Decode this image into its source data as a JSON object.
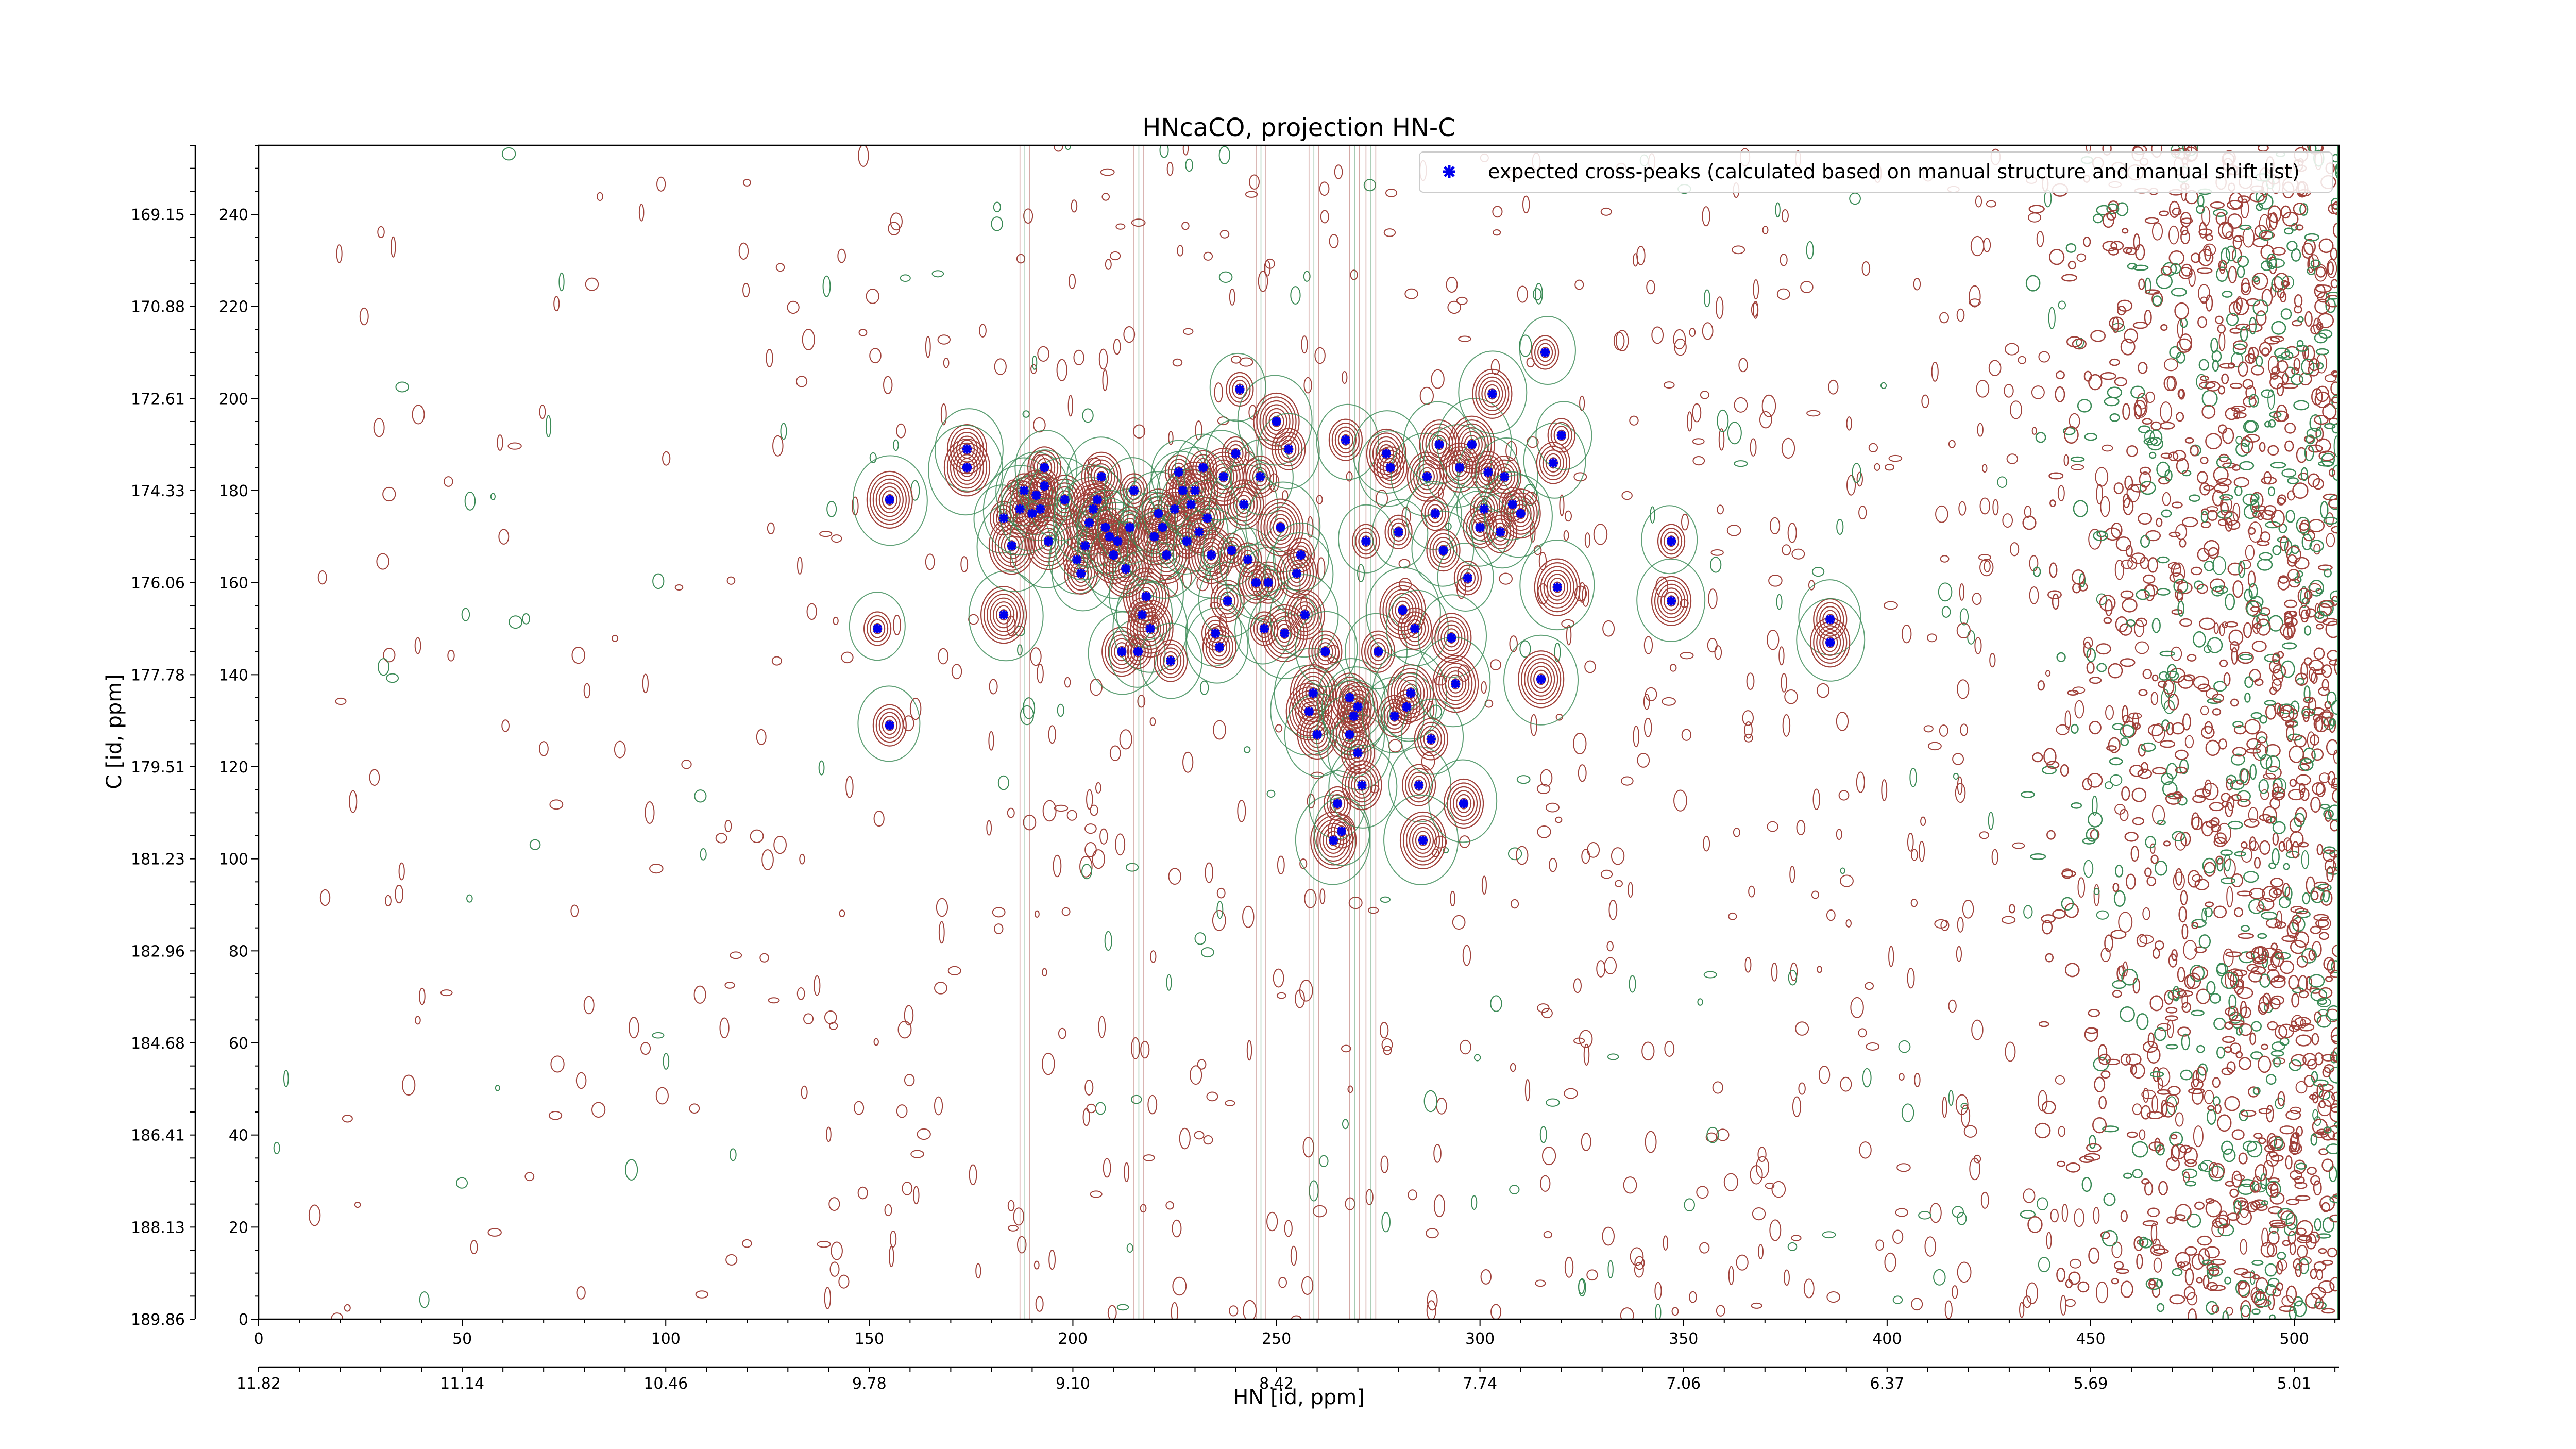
{
  "chart_data": {
    "type": "scatter",
    "title": "HNcaCO, projection HN-C",
    "xlabel": "HN [id, ppm]",
    "ylabel": "C [id, ppm]",
    "xlim": [
      0,
      511
    ],
    "ylim": [
      0,
      255
    ],
    "x_ticks": [
      0,
      50,
      100,
      150,
      200,
      250,
      300,
      350,
      400,
      450,
      500
    ],
    "y_ticks": [
      0,
      20,
      40,
      60,
      80,
      100,
      120,
      140,
      160,
      180,
      200,
      220,
      240
    ],
    "secondary_x_axis": {
      "label": "HN [id, ppm]",
      "position": "bottom",
      "ticks": [
        {
          "index": 0,
          "label": "11.82"
        },
        {
          "index": 50,
          "label": "11.14"
        },
        {
          "index": 100,
          "label": "10.46"
        },
        {
          "index": 150,
          "label": "9.78"
        },
        {
          "index": 200,
          "label": "9.10"
        },
        {
          "index": 250,
          "label": "8.42"
        },
        {
          "index": 300,
          "label": "7.74"
        },
        {
          "index": 350,
          "label": "7.06"
        },
        {
          "index": 400,
          "label": "6.37"
        },
        {
          "index": 450,
          "label": "5.69"
        },
        {
          "index": 500,
          "label": "5.01"
        }
      ]
    },
    "secondary_y_axis": {
      "position": "left",
      "ticks": [
        {
          "index": 0,
          "label": "189.86"
        },
        {
          "index": 20,
          "label": "188.13"
        },
        {
          "index": 40,
          "label": "186.41"
        },
        {
          "index": 60,
          "label": "184.68"
        },
        {
          "index": 80,
          "label": "182.96"
        },
        {
          "index": 100,
          "label": "181.23"
        },
        {
          "index": 120,
          "label": "179.51"
        },
        {
          "index": 140,
          "label": "177.78"
        },
        {
          "index": 160,
          "label": "176.06"
        },
        {
          "index": 180,
          "label": "174.33"
        },
        {
          "index": 200,
          "label": "172.61"
        },
        {
          "index": 220,
          "label": "170.88"
        },
        {
          "index": 240,
          "label": "169.15"
        }
      ]
    },
    "legend": {
      "position": "top-right",
      "entries": [
        "expected cross-peaks (calculated based on manual structure and manual shift list)"
      ]
    },
    "grid": false,
    "colors": {
      "positive_contour": "#a0413a",
      "negative_contour": "#3a8a55",
      "peak_marker": "#0000ee"
    },
    "series": [
      {
        "name": "expected cross-peaks (calculated based on manual structure and manual shift list)",
        "x": [
          155,
          174,
          174,
          183,
          183,
          185,
          187,
          188,
          190,
          191,
          192,
          193,
          193,
          194,
          198,
          201,
          202,
          203,
          204,
          205,
          206,
          207,
          208,
          209,
          210,
          211,
          212,
          213,
          214,
          215,
          216,
          217,
          218,
          219,
          220,
          221,
          222,
          223,
          224,
          225,
          226,
          227,
          228,
          229,
          230,
          231,
          232,
          233,
          234,
          235,
          236,
          237,
          238,
          239,
          240,
          241,
          242,
          243,
          245,
          246,
          247,
          248,
          250,
          251,
          252,
          253,
          255,
          256,
          257,
          258,
          259,
          260,
          262,
          264,
          265,
          266,
          267,
          268,
          268,
          269,
          270,
          270,
          271,
          272,
          275,
          277,
          278,
          279,
          280,
          281,
          282,
          283,
          284,
          285,
          286,
          287,
          288,
          289,
          290,
          291,
          293,
          294,
          295,
          296,
          297,
          298,
          300,
          301,
          302,
          303,
          305,
          306,
          308,
          310,
          315,
          316,
          318,
          319,
          320,
          347,
          347,
          386,
          386,
          155,
          152
        ],
        "y": [
          178,
          189,
          185,
          174,
          153,
          168,
          176,
          180,
          175,
          179,
          176,
          185,
          181,
          169,
          178,
          165,
          162,
          168,
          173,
          176,
          178,
          183,
          172,
          170,
          166,
          169,
          145,
          163,
          172,
          180,
          145,
          153,
          157,
          150,
          170,
          175,
          172,
          166,
          143,
          176,
          184,
          180,
          169,
          177,
          180,
          171,
          185,
          174,
          166,
          149,
          146,
          183,
          156,
          167,
          188,
          202,
          177,
          165,
          160,
          183,
          150,
          160,
          195,
          172,
          149,
          189,
          162,
          166,
          153,
          132,
          136,
          127,
          145,
          104,
          112,
          106,
          191,
          135,
          127,
          131,
          123,
          133,
          116,
          169,
          145,
          188,
          185,
          131,
          171,
          154,
          133,
          136,
          150,
          116,
          104,
          183,
          126,
          175,
          190,
          167,
          148,
          138,
          185,
          112,
          161,
          190,
          172,
          176,
          184,
          201,
          171,
          183,
          177,
          175,
          139,
          210,
          186,
          159,
          192,
          169,
          156,
          152,
          147,
          129,
          150
        ]
      }
    ]
  }
}
